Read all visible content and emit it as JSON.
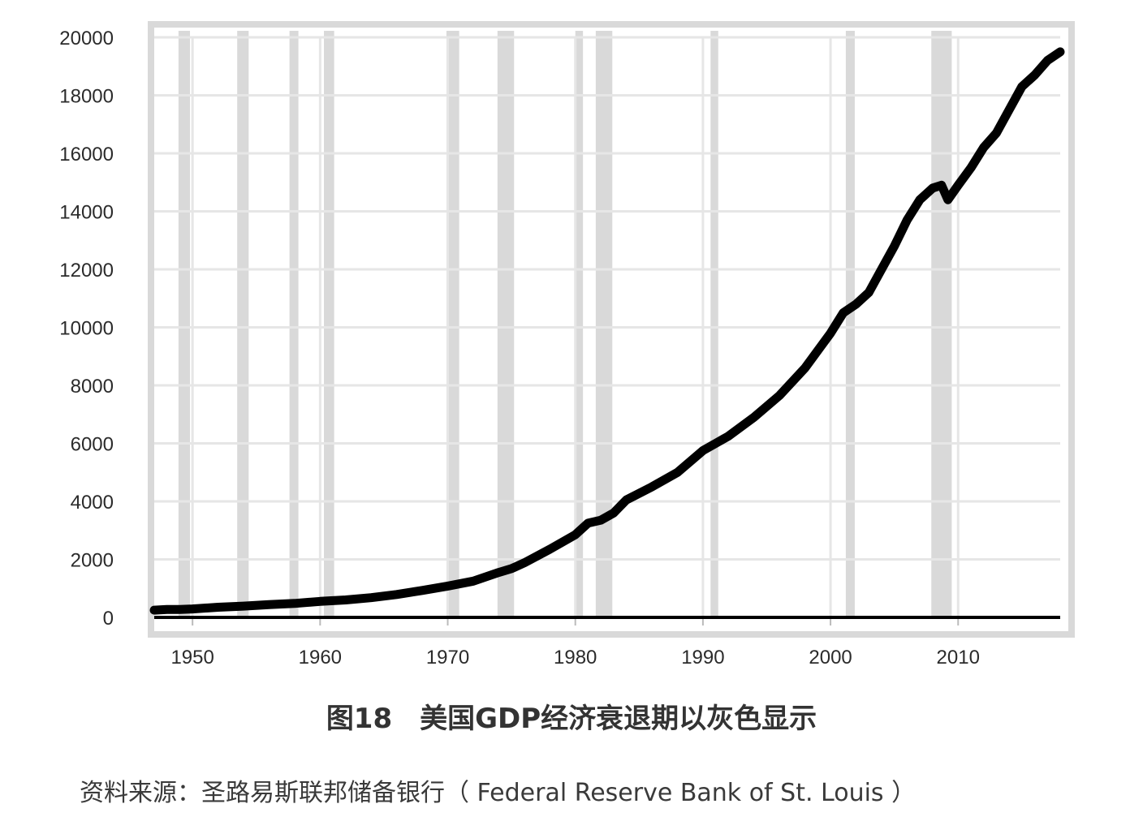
{
  "caption": "图18　美国GDP经济衰退期以灰色显示",
  "source": "资料来源：圣路易斯联邦储备银行（ Federal Reserve Bank of St. Louis ）",
  "chart_data": {
    "type": "line",
    "title": "",
    "xlabel": "",
    "ylabel": "",
    "xlim": [
      1947,
      2018
    ],
    "ylim": [
      0,
      20000
    ],
    "x_ticks": [
      1950,
      1960,
      1970,
      1980,
      1990,
      2000,
      2010
    ],
    "y_ticks": [
      0,
      2000,
      4000,
      6000,
      8000,
      10000,
      12000,
      14000,
      16000,
      18000,
      20000
    ],
    "grid": true,
    "legend": "none",
    "colors": {
      "line": "#000000",
      "recession": "#d9d9d9",
      "grid": "#e6e6e6",
      "frame": "#d9d9d9"
    },
    "recessions": [
      [
        1948.9,
        1949.8
      ],
      [
        1953.5,
        1954.4
      ],
      [
        1957.6,
        1958.3
      ],
      [
        1960.3,
        1961.1
      ],
      [
        1969.9,
        1970.9
      ],
      [
        1973.9,
        1975.2
      ],
      [
        1980.0,
        1980.6
      ],
      [
        1981.6,
        1982.9
      ],
      [
        1990.6,
        1991.2
      ],
      [
        2001.2,
        2001.9
      ],
      [
        2007.9,
        2009.5
      ]
    ],
    "series": [
      {
        "x": [
          1947,
          1948,
          1949,
          1950,
          1952,
          1954,
          1956,
          1958,
          1960,
          1962,
          1964,
          1966,
          1968,
          1970,
          1972,
          1974,
          1975,
          1976,
          1978,
          1980,
          1981,
          1982,
          1983,
          1984,
          1986,
          1988,
          1990,
          1991,
          1992,
          1994,
          1996,
          1998,
          2000,
          2001,
          2002,
          2003,
          2004,
          2005,
          2006,
          2007,
          2008,
          2008.7,
          2009.2,
          2010,
          2011,
          2012,
          2013,
          2014,
          2015,
          2016,
          2017,
          2018
        ],
        "values": [
          250,
          270,
          270,
          290,
          350,
          390,
          440,
          480,
          550,
          600,
          680,
          790,
          930,
          1080,
          1250,
          1550,
          1680,
          1880,
          2350,
          2850,
          3250,
          3350,
          3600,
          4050,
          4500,
          5000,
          5750,
          6000,
          6250,
          6900,
          7650,
          8600,
          9800,
          10500,
          10800,
          11200,
          12000,
          12800,
          13700,
          14400,
          14800,
          14900,
          14400,
          14900,
          15500,
          16200,
          16700,
          17500,
          18300,
          18700,
          19200,
          19500
        ]
      }
    ]
  }
}
